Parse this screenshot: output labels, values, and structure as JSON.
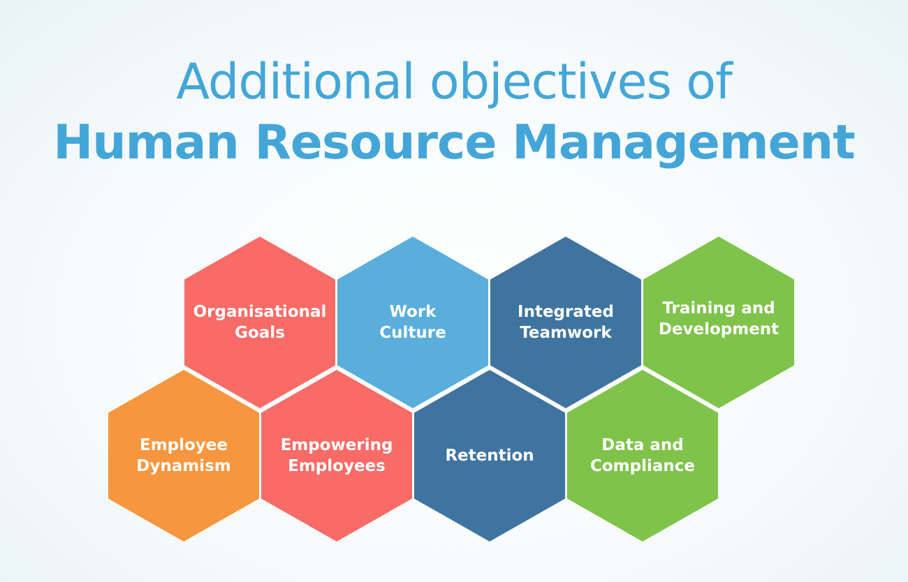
{
  "title": {
    "line1": "Additional objectives of",
    "line2": "Human Resource Management"
  },
  "colors": {
    "title": "#44a6d8",
    "red": "#f86b67",
    "light_blue": "#5aaedc",
    "dark_blue": "#3f74a0",
    "green": "#7fc34a",
    "orange": "#f7963e",
    "background": "#f7fbfc"
  },
  "hexagons": [
    {
      "label": "Organisational\nGoals",
      "color": "#f86b67"
    },
    {
      "label": "Work\nCulture",
      "color": "#5aaedc"
    },
    {
      "label": "Integrated\nTeamwork",
      "color": "#3f74a0"
    },
    {
      "label": "Training and\nDevelopment",
      "color": "#7fc34a"
    },
    {
      "label": "Employee\nDynamism",
      "color": "#f7963e"
    },
    {
      "label": "Empowering\nEmployees",
      "color": "#f86b67"
    },
    {
      "label": "Retention",
      "color": "#3f74a0"
    },
    {
      "label": "Data and\nCompliance",
      "color": "#7fc34a"
    }
  ]
}
